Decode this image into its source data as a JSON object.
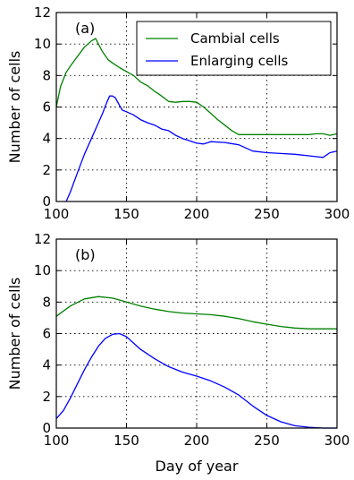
{
  "chart_data": [
    {
      "type": "line",
      "panel_label": "(a)",
      "title": "",
      "xlabel": "",
      "ylabel": "Number of cells",
      "xlim": [
        100,
        300
      ],
      "ylim": [
        0,
        12
      ],
      "xticks": [
        100,
        150,
        200,
        250,
        300
      ],
      "yticks": [
        0,
        2,
        4,
        6,
        8,
        10,
        12
      ],
      "grid": true,
      "legend_position": "top-right",
      "series": [
        {
          "name": "Cambial cells",
          "color": "#008000",
          "x": [
            100,
            103,
            107,
            110,
            115,
            120,
            125,
            128,
            130,
            133,
            137,
            140,
            145,
            150,
            155,
            160,
            165,
            170,
            175,
            180,
            185,
            190,
            195,
            200,
            205,
            210,
            215,
            220,
            225,
            230,
            240,
            250,
            260,
            270,
            280,
            285,
            290,
            295,
            300
          ],
          "y": [
            6.0,
            7.3,
            8.2,
            8.6,
            9.2,
            9.8,
            10.2,
            10.35,
            10.0,
            9.5,
            9.0,
            8.8,
            8.5,
            8.25,
            8.0,
            7.6,
            7.35,
            7.0,
            6.7,
            6.35,
            6.3,
            6.35,
            6.35,
            6.3,
            6.0,
            5.6,
            5.2,
            4.85,
            4.5,
            4.25,
            4.25,
            4.25,
            4.25,
            4.25,
            4.25,
            4.3,
            4.3,
            4.2,
            4.3
          ]
        },
        {
          "name": "Enlarging cells",
          "color": "#0000ff",
          "x": [
            107,
            110,
            115,
            120,
            125,
            130,
            133,
            136,
            138,
            140,
            142,
            145,
            147,
            150,
            155,
            160,
            165,
            170,
            175,
            180,
            185,
            190,
            195,
            200,
            205,
            210,
            220,
            230,
            240,
            250,
            260,
            270,
            280,
            285,
            290,
            295,
            300
          ],
          "y": [
            0.0,
            0.6,
            1.8,
            3.0,
            4.0,
            5.0,
            5.6,
            6.3,
            6.7,
            6.7,
            6.6,
            6.1,
            5.8,
            5.7,
            5.5,
            5.2,
            5.0,
            4.85,
            4.6,
            4.5,
            4.2,
            4.0,
            3.85,
            3.7,
            3.65,
            3.8,
            3.75,
            3.6,
            3.2,
            3.1,
            3.05,
            3.0,
            2.9,
            2.85,
            2.8,
            3.1,
            3.2
          ]
        }
      ]
    },
    {
      "type": "line",
      "panel_label": "(b)",
      "title": "",
      "xlabel": "Day of year",
      "ylabel": "Number of cells",
      "xlim": [
        100,
        300
      ],
      "ylim": [
        0,
        12
      ],
      "xticks": [
        100,
        150,
        200,
        250,
        300
      ],
      "yticks": [
        0,
        2,
        4,
        6,
        8,
        10,
        12
      ],
      "grid": true,
      "series": [
        {
          "color": "#008000",
          "x": [
            100,
            110,
            120,
            130,
            140,
            150,
            160,
            170,
            180,
            190,
            200,
            210,
            220,
            230,
            240,
            250,
            260,
            270,
            280,
            290,
            300
          ],
          "y": [
            7.1,
            7.75,
            8.2,
            8.35,
            8.25,
            8.0,
            7.75,
            7.55,
            7.4,
            7.3,
            7.25,
            7.2,
            7.1,
            6.95,
            6.75,
            6.6,
            6.45,
            6.35,
            6.3,
            6.3,
            6.3
          ]
        },
        {
          "color": "#0000ff",
          "x": [
            100,
            105,
            110,
            115,
            120,
            125,
            130,
            135,
            140,
            145,
            150,
            155,
            160,
            170,
            180,
            190,
            200,
            210,
            220,
            230,
            240,
            250,
            260,
            270,
            280,
            290,
            300
          ],
          "y": [
            0.6,
            1.1,
            1.9,
            2.8,
            3.7,
            4.5,
            5.2,
            5.7,
            5.95,
            6.0,
            5.8,
            5.4,
            5.0,
            4.4,
            3.9,
            3.55,
            3.3,
            3.0,
            2.6,
            2.1,
            1.4,
            0.8,
            0.4,
            0.15,
            0.05,
            0.0,
            0.0
          ]
        }
      ]
    }
  ]
}
